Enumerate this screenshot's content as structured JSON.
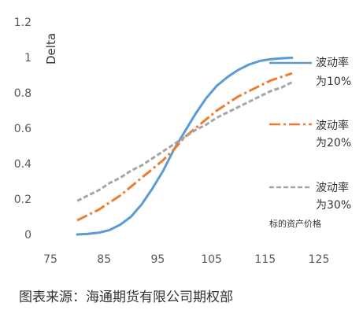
{
  "chart_data": {
    "type": "line",
    "ylabel": "Delta",
    "xlabel": "标的资产价格",
    "xlim": [
      75,
      125
    ],
    "ylim": [
      0,
      1.2
    ],
    "xticks": [
      "75",
      "85",
      "95",
      "105",
      "115",
      "125"
    ],
    "yticks": [
      "0",
      "0.2",
      "0.4",
      "0.6",
      "0.8",
      "1",
      "1.2"
    ],
    "grid": false,
    "legend_position": "right",
    "series": [
      {
        "name": "波动率为10%",
        "color": "#5B9BD5",
        "dash": "solid",
        "x": [
          80,
          82,
          84,
          86,
          88,
          90,
          92,
          94,
          96,
          98,
          100,
          102,
          104,
          106,
          108,
          110,
          112,
          114,
          116,
          118,
          120
        ],
        "y": [
          0.0,
          0.003,
          0.01,
          0.025,
          0.055,
          0.1,
          0.17,
          0.26,
          0.36,
          0.48,
          0.58,
          0.68,
          0.77,
          0.84,
          0.89,
          0.93,
          0.96,
          0.98,
          0.99,
          0.995,
          0.998
        ]
      },
      {
        "name": "波动率为20%",
        "color": "#ED7D31",
        "dash": "dash-dot",
        "x": [
          80,
          82,
          84,
          86,
          88,
          90,
          92,
          94,
          96,
          98,
          100,
          102,
          104,
          106,
          108,
          110,
          112,
          114,
          116,
          118,
          120
        ],
        "y": [
          0.08,
          0.11,
          0.14,
          0.18,
          0.22,
          0.27,
          0.32,
          0.37,
          0.42,
          0.48,
          0.55,
          0.6,
          0.65,
          0.7,
          0.74,
          0.78,
          0.81,
          0.84,
          0.87,
          0.89,
          0.91
        ]
      },
      {
        "name": "波动率为30%",
        "color": "#A5A5A5",
        "dash": "dashed",
        "x": [
          80,
          82,
          84,
          86,
          88,
          90,
          92,
          94,
          96,
          98,
          100,
          102,
          104,
          106,
          108,
          110,
          112,
          114,
          116,
          118,
          120
        ],
        "y": [
          0.19,
          0.22,
          0.25,
          0.29,
          0.32,
          0.36,
          0.39,
          0.43,
          0.47,
          0.51,
          0.55,
          0.59,
          0.62,
          0.66,
          0.69,
          0.72,
          0.75,
          0.78,
          0.81,
          0.83,
          0.86
        ]
      }
    ],
    "legend": [
      {
        "line1": "波动率",
        "line2": "为10%"
      },
      {
        "line1": "波动率",
        "line2": "为20%"
      },
      {
        "line1": "波动率",
        "line2": "为30%"
      }
    ]
  },
  "footer": {
    "source": "图表来源：海通期货有限公司期权部"
  }
}
